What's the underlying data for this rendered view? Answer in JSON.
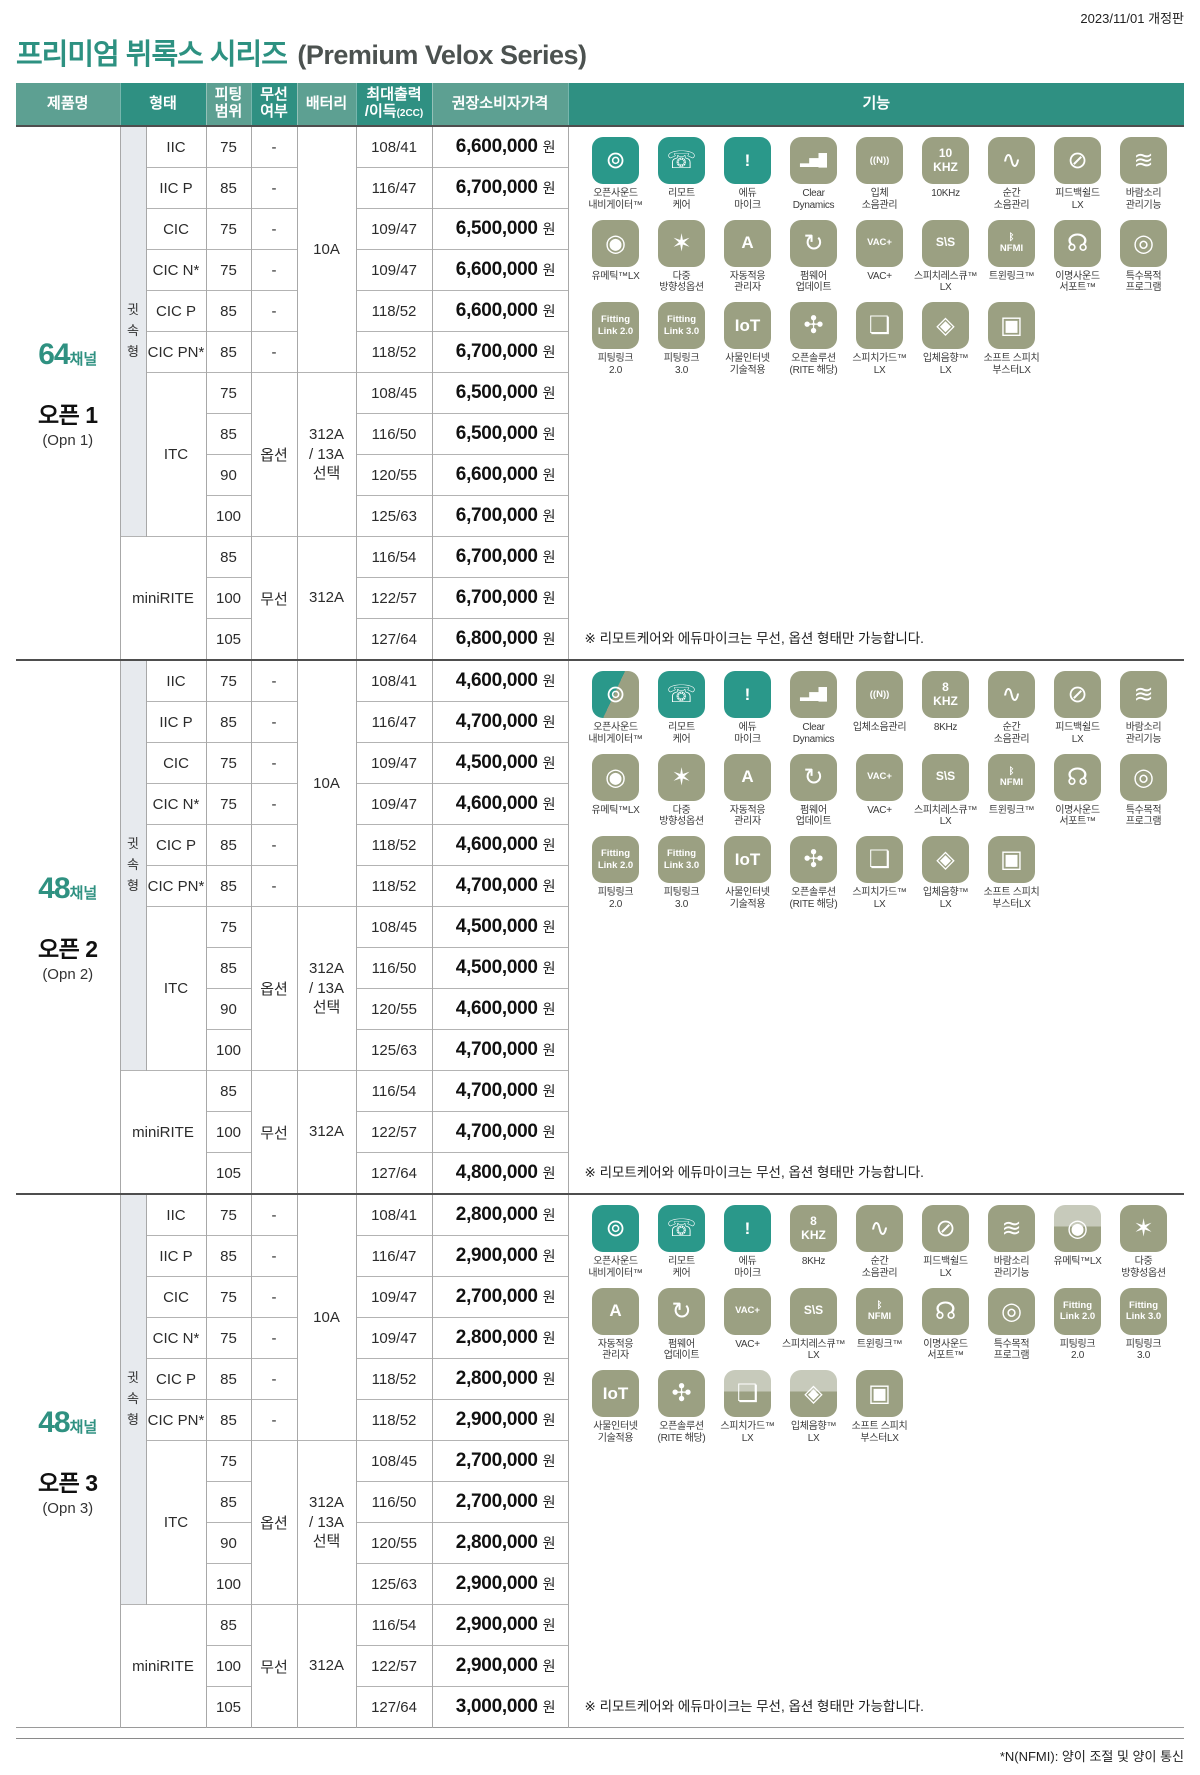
{
  "page": {
    "date_note": "2023/11/01 개정판",
    "title_ko": "프리미엄 뷔록스 시리즈",
    "title_en": "(Premium Velox Series)",
    "footnote": "*N(NFMI): 양이 조절 및 양이 통신",
    "currency_suffix": "원"
  },
  "colors": {
    "accent_teal": "#2d9181",
    "header_light": "#5da092",
    "header_dark": "#2f9082",
    "icon_teal": "#2a988a",
    "icon_olive": "#9ba082",
    "strip_bg": "#e7eaee"
  },
  "table": {
    "headers": [
      {
        "label": "제품명",
        "shade": "l",
        "colspan": 1
      },
      {
        "label": "형태",
        "shade": "d",
        "colspan": 2
      },
      {
        "label": "피팅\n범위",
        "shade": "l",
        "colspan": 1
      },
      {
        "label": "무선\n여부",
        "shade": "d",
        "colspan": 1
      },
      {
        "label": "배터리",
        "shade": "l",
        "colspan": 1
      },
      {
        "label": "최대출력\n/이득",
        "sup": "(2CC)",
        "shade": "d",
        "colspan": 1
      },
      {
        "label": "권장소비자가격",
        "shade": "l",
        "colspan": 1
      },
      {
        "label": "기능",
        "shade": "d",
        "colspan": 1
      }
    ],
    "ear_type_label": "귓\n속\n형",
    "type_itc": "ITC",
    "type_minirite": "miniRITE",
    "feature_defs": {
      "osn": {
        "label": "오픈사운드\n내비게이터™",
        "glyph": "⊚",
        "gclass": "g-lg"
      },
      "remote": {
        "label": "리모트\n케어",
        "glyph": "☏",
        "gclass": "g-lg"
      },
      "edumic": {
        "label": "에듀\n마이크",
        "glyph": "!",
        "gclass": "g-md"
      },
      "cleardyn": {
        "label": "Clear\nDynamics",
        "glyph": "▂▅█",
        "gclass": "g-sm"
      },
      "spatialnoise": {
        "label": "입체\n소음관리",
        "glyph": "((N))",
        "gclass": "g-xs"
      },
      "k10": {
        "label": "10KHz",
        "glyph": "10\nKHZ",
        "gclass": "g-sm"
      },
      "k8": {
        "label": "8KHz",
        "glyph": "8\nKHZ",
        "gclass": "g-sm"
      },
      "instant": {
        "label": "순간\n소음관리",
        "glyph": "∿",
        "gclass": "g-lg"
      },
      "feedback": {
        "label": "피드백쉴드\nLX",
        "glyph": "⊘",
        "gclass": "g-lg"
      },
      "wind": {
        "label": "바람소리\n관리기능",
        "glyph": "≋",
        "gclass": "g-lg"
      },
      "youmatic": {
        "label": "유메틱™LX",
        "glyph": "◉",
        "gclass": "g-lg"
      },
      "multidir": {
        "label": "다중\n방향성옵션",
        "glyph": "✶",
        "gclass": "g-lg"
      },
      "autoadapt": {
        "label": "자동적응\n관리자",
        "glyph": "A",
        "gclass": "g-md"
      },
      "firmware": {
        "label": "펌웨어\n업데이트",
        "glyph": "↻",
        "gclass": "g-lg"
      },
      "vac": {
        "label": "VAC+",
        "glyph": "VAC+",
        "gclass": "g-xs"
      },
      "speechrescue": {
        "label": "스피치레스큐™\nLX",
        "glyph": "S\\S",
        "gclass": "g-sm"
      },
      "twinlink": {
        "label": "트윈링크™",
        "glyph": "ᛒ\nNFMI",
        "gclass": "g-xs"
      },
      "tinnitus": {
        "label": "이명사운드\n서포트™",
        "glyph": "☊",
        "gclass": "g-lg"
      },
      "special": {
        "label": "특수목적\n프로그램",
        "glyph": "◎",
        "gclass": "g-lg"
      },
      "fl20": {
        "label": "피팅링크\n2.0",
        "glyph": "Fitting\nLink 2.0",
        "gclass": "g-xs"
      },
      "fl30": {
        "label": "피팅링크\n3.0",
        "glyph": "Fitting\nLink 3.0",
        "gclass": "g-xs"
      },
      "iot": {
        "label": "사물인터넷\n기술적용",
        "glyph": "IoT",
        "gclass": "g-md"
      },
      "opensol": {
        "label": "오픈솔루션\n(RITE 해당)",
        "glyph": "✣",
        "gclass": "g-lg"
      },
      "speechguard": {
        "label": "스피치가드™\nLX",
        "glyph": "❏",
        "gclass": "g-lg"
      },
      "soundspatial": {
        "label": "입체음향™\nLX",
        "glyph": "◈",
        "gclass": "g-lg"
      },
      "softspeech": {
        "label": "소프트 스피치\n부스터LX",
        "glyph": "▣",
        "gclass": "g-lg"
      }
    },
    "sections": [
      {
        "channel": "64",
        "channel_suffix": "채널",
        "name": "오픈 1",
        "name_en": "(Opn 1)",
        "battery_small": "10A",
        "battery_mid": "312A\n/ 13A\n선택",
        "battery_rite": "312A",
        "wireless_dash": "-",
        "wireless_option": "옵션",
        "wireless_yes": "무선",
        "note": "※ 리모트케어와 에듀마이크는 무선, 옵션 형태만 가능합니다.",
        "rows": [
          {
            "type": "IIC",
            "fit": "75",
            "out": "108/41",
            "price": "6,600,000"
          },
          {
            "type": "IIC P",
            "fit": "85",
            "out": "116/47",
            "price": "6,700,000"
          },
          {
            "type": "CIC",
            "fit": "75",
            "out": "109/47",
            "price": "6,500,000"
          },
          {
            "type": "CIC N*",
            "fit": "75",
            "out": "109/47",
            "price": "6,600,000"
          },
          {
            "type": "CIC P",
            "fit": "85",
            "out": "118/52",
            "price": "6,600,000"
          },
          {
            "type": "CIC PN*",
            "fit": "85",
            "out": "118/52",
            "price": "6,700,000"
          },
          {
            "type": "ITC",
            "fit": "75",
            "out": "108/45",
            "price": "6,500,000"
          },
          {
            "type": "ITC",
            "fit": "85",
            "out": "116/50",
            "price": "6,500,000"
          },
          {
            "type": "ITC",
            "fit": "90",
            "out": "120/55",
            "price": "6,600,000"
          },
          {
            "type": "ITC",
            "fit": "100",
            "out": "125/63",
            "price": "6,700,000"
          },
          {
            "type": "miniRITE",
            "fit": "85",
            "out": "116/54",
            "price": "6,700,000"
          },
          {
            "type": "miniRITE",
            "fit": "100",
            "out": "122/57",
            "price": "6,700,000"
          },
          {
            "type": "miniRITE",
            "fit": "105",
            "out": "127/64",
            "price": "6,800,000"
          }
        ],
        "features": [
          {
            "id": "osn",
            "tone": "teal"
          },
          {
            "id": "remote",
            "tone": "teal"
          },
          {
            "id": "edumic",
            "tone": "teal"
          },
          {
            "id": "cleardyn"
          },
          {
            "id": "spatialnoise",
            "label": "입체\n소음관리"
          },
          {
            "id": "k10"
          },
          {
            "id": "instant"
          },
          {
            "id": "feedback"
          },
          {
            "id": "wind"
          },
          {
            "id": "youmatic"
          },
          {
            "id": "multidir"
          },
          {
            "id": "autoadapt"
          },
          {
            "id": "firmware"
          },
          {
            "id": "vac"
          },
          {
            "id": "speechrescue"
          },
          {
            "id": "twinlink"
          },
          {
            "id": "tinnitus"
          },
          {
            "id": "special"
          },
          {
            "id": "fl20"
          },
          {
            "id": "fl30"
          },
          {
            "id": "iot"
          },
          {
            "id": "opensol"
          },
          {
            "id": "speechguard"
          },
          {
            "id": "soundspatial"
          },
          {
            "id": "softspeech"
          }
        ]
      },
      {
        "channel": "48",
        "channel_suffix": "채널",
        "name": "오픈 2",
        "name_en": "(Opn 2)",
        "battery_small": "10A",
        "battery_mid": "312A\n/ 13A\n선택",
        "battery_rite": "312A",
        "wireless_dash": "-",
        "wireless_option": "옵션",
        "wireless_yes": "무선",
        "note": "※ 리모트케어와 에듀마이크는 무선, 옵션 형태만 가능합니다.",
        "rows": [
          {
            "type": "IIC",
            "fit": "75",
            "out": "108/41",
            "price": "4,600,000"
          },
          {
            "type": "IIC P",
            "fit": "85",
            "out": "116/47",
            "price": "4,700,000"
          },
          {
            "type": "CIC",
            "fit": "75",
            "out": "109/47",
            "price": "4,500,000"
          },
          {
            "type": "CIC N*",
            "fit": "75",
            "out": "109/47",
            "price": "4,600,000"
          },
          {
            "type": "CIC P",
            "fit": "85",
            "out": "118/52",
            "price": "4,600,000"
          },
          {
            "type": "CIC PN*",
            "fit": "85",
            "out": "118/52",
            "price": "4,700,000"
          },
          {
            "type": "ITC",
            "fit": "75",
            "out": "108/45",
            "price": "4,500,000"
          },
          {
            "type": "ITC",
            "fit": "85",
            "out": "116/50",
            "price": "4,500,000"
          },
          {
            "type": "ITC",
            "fit": "90",
            "out": "120/55",
            "price": "4,600,000"
          },
          {
            "type": "ITC",
            "fit": "100",
            "out": "125/63",
            "price": "4,700,000"
          },
          {
            "type": "miniRITE",
            "fit": "85",
            "out": "116/54",
            "price": "4,700,000"
          },
          {
            "type": "miniRITE",
            "fit": "100",
            "out": "122/57",
            "price": "4,700,000"
          },
          {
            "type": "miniRITE",
            "fit": "105",
            "out": "127/64",
            "price": "4,800,000"
          }
        ],
        "features": [
          {
            "id": "osn",
            "tone": "split"
          },
          {
            "id": "remote",
            "tone": "teal"
          },
          {
            "id": "edumic",
            "tone": "teal"
          },
          {
            "id": "cleardyn"
          },
          {
            "id": "spatialnoise",
            "label": "입체소음관리"
          },
          {
            "id": "k8"
          },
          {
            "id": "instant"
          },
          {
            "id": "feedback"
          },
          {
            "id": "wind"
          },
          {
            "id": "youmatic"
          },
          {
            "id": "multidir"
          },
          {
            "id": "autoadapt"
          },
          {
            "id": "firmware"
          },
          {
            "id": "vac"
          },
          {
            "id": "speechrescue"
          },
          {
            "id": "twinlink"
          },
          {
            "id": "tinnitus"
          },
          {
            "id": "special"
          },
          {
            "id": "fl20"
          },
          {
            "id": "fl30"
          },
          {
            "id": "iot"
          },
          {
            "id": "opensol"
          },
          {
            "id": "speechguard"
          },
          {
            "id": "soundspatial"
          },
          {
            "id": "softspeech"
          }
        ]
      },
      {
        "channel": "48",
        "channel_suffix": "채널",
        "name": "오픈 3",
        "name_en": "(Opn 3)",
        "battery_small": "10A",
        "battery_mid": "312A\n/ 13A\n선택",
        "battery_rite": "312A",
        "wireless_dash": "-",
        "wireless_option": "옵션",
        "wireless_yes": "무선",
        "note": "※ 리모트케어와 에듀마이크는 무선, 옵션 형태만 가능합니다.",
        "rows": [
          {
            "type": "IIC",
            "fit": "75",
            "out": "108/41",
            "price": "2,800,000"
          },
          {
            "type": "IIC P",
            "fit": "85",
            "out": "116/47",
            "price": "2,900,000"
          },
          {
            "type": "CIC",
            "fit": "75",
            "out": "109/47",
            "price": "2,700,000"
          },
          {
            "type": "CIC N*",
            "fit": "75",
            "out": "109/47",
            "price": "2,800,000"
          },
          {
            "type": "CIC P",
            "fit": "85",
            "out": "118/52",
            "price": "2,800,000"
          },
          {
            "type": "CIC PN*",
            "fit": "85",
            "out": "118/52",
            "price": "2,900,000"
          },
          {
            "type": "ITC",
            "fit": "75",
            "out": "108/45",
            "price": "2,700,000"
          },
          {
            "type": "ITC",
            "fit": "85",
            "out": "116/50",
            "price": "2,700,000"
          },
          {
            "type": "ITC",
            "fit": "90",
            "out": "120/55",
            "price": "2,800,000"
          },
          {
            "type": "ITC",
            "fit": "100",
            "out": "125/63",
            "price": "2,900,000"
          },
          {
            "type": "miniRITE",
            "fit": "85",
            "out": "116/54",
            "price": "2,900,000"
          },
          {
            "type": "miniRITE",
            "fit": "100",
            "out": "122/57",
            "price": "2,900,000"
          },
          {
            "type": "miniRITE",
            "fit": "105",
            "out": "127/64",
            "price": "3,000,000"
          }
        ],
        "features": [
          {
            "id": "osn",
            "tone": "teal"
          },
          {
            "id": "remote",
            "tone": "teal"
          },
          {
            "id": "edumic",
            "tone": "teal"
          },
          {
            "id": "k8"
          },
          {
            "id": "instant"
          },
          {
            "id": "feedback"
          },
          {
            "id": "wind"
          },
          {
            "id": "youmatic",
            "tone": "splitlight"
          },
          {
            "id": "multidir"
          },
          {
            "id": "autoadapt"
          },
          {
            "id": "firmware"
          },
          {
            "id": "vac"
          },
          {
            "id": "speechrescue"
          },
          {
            "id": "twinlink"
          },
          {
            "id": "tinnitus"
          },
          {
            "id": "special"
          },
          {
            "id": "fl20"
          },
          {
            "id": "fl30"
          },
          {
            "id": "iot"
          },
          {
            "id": "opensol"
          },
          {
            "id": "speechguard",
            "tone": "splitlight"
          },
          {
            "id": "soundspatial",
            "tone": "splitlight"
          },
          {
            "id": "softspeech"
          }
        ]
      }
    ]
  }
}
